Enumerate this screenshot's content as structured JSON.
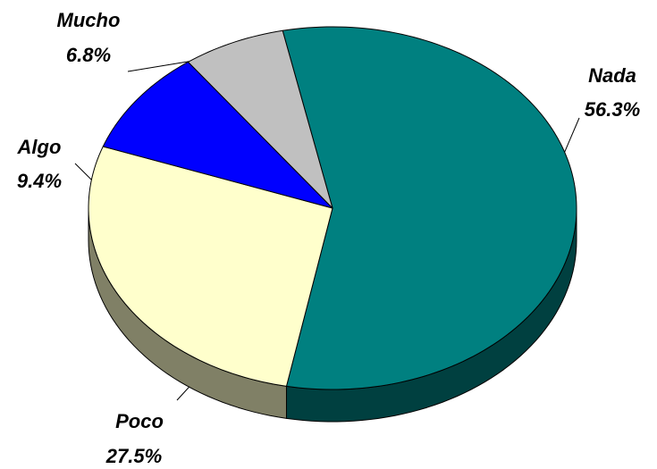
{
  "chart_data": {
    "type": "pie",
    "style": "3d",
    "title": "",
    "slices": [
      {
        "name": "Nada",
        "value": 56.3,
        "label": "56.3%",
        "color": "#008080",
        "side_color": "#004040"
      },
      {
        "name": "Poco",
        "value": 27.5,
        "label": "27.5%",
        "color": "#FFFFCC",
        "side_color": "#808066"
      },
      {
        "name": "Algo",
        "value": 9.4,
        "label": "9.4%",
        "color": "#0000FF",
        "side_color": "#000080"
      },
      {
        "name": "Mucho",
        "value": 6.8,
        "label": "6.8%",
        "color": "#C0C0C0",
        "side_color": "#606060"
      }
    ],
    "legend": "none"
  }
}
